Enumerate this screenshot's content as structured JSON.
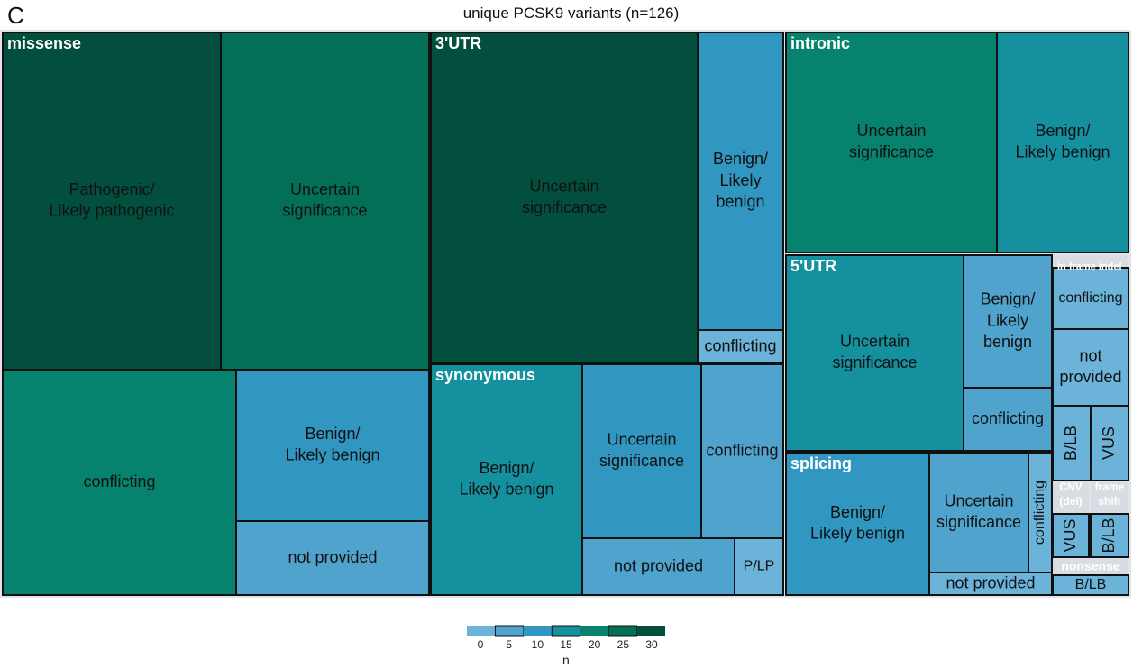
{
  "panel_letter": "C",
  "chart_data": {
    "type": "treemap",
    "title": "unique PCSK9 variants (n=126)",
    "groups": [
      {
        "name": "missense",
        "cells": [
          {
            "label": "Pathogenic/\nLikely pathogenic",
            "value": 28
          },
          {
            "label": "Uncertain\nsignificance",
            "value": 26
          },
          {
            "label": "conflicting",
            "value": 19
          },
          {
            "label": "Benign/\nLikely benign",
            "value": 11
          },
          {
            "label": "not provided",
            "value": 6
          }
        ]
      },
      {
        "name": "3'UTR",
        "cells": [
          {
            "label": "Uncertain\nsignificance",
            "value": 30
          },
          {
            "label": "Benign/\nLikely\nbenign",
            "value": 11
          },
          {
            "label": "conflicting",
            "value": 1
          }
        ]
      },
      {
        "name": "synonymous",
        "cells": [
          {
            "label": "Benign/\nLikely benign",
            "value": 13
          },
          {
            "label": "Uncertain\nsignificance",
            "value": 9
          },
          {
            "label": "conflicting",
            "value": 6
          },
          {
            "label": "not provided",
            "value": 5
          },
          {
            "label": "P/LP",
            "value": 2
          }
        ]
      },
      {
        "name": "intronic",
        "cells": [
          {
            "label": "Uncertain\nsignificance",
            "value": 20
          },
          {
            "label": "Benign/\nLikely benign",
            "value": 13
          }
        ]
      },
      {
        "name": "5'UTR",
        "cells": [
          {
            "label": "Uncertain\nsignificance",
            "value": 14
          },
          {
            "label": "Benign/\nLikely\nbenign",
            "value": 6
          },
          {
            "label": "conflicting",
            "value": 4
          }
        ]
      },
      {
        "name": "splicing",
        "cells": [
          {
            "label": "Benign/\nLikely benign",
            "value": 10
          },
          {
            "label": "Uncertain\nsignificance",
            "value": 7
          },
          {
            "label": "conflicting",
            "value": 1
          },
          {
            "label": "not provided",
            "value": 2
          }
        ]
      },
      {
        "name": "in frame indel",
        "cells": [
          {
            "label": "conflicting",
            "value": 2
          },
          {
            "label": "not\nprovided",
            "value": 2
          },
          {
            "label": "B/LB",
            "value": 1
          },
          {
            "label": "VUS",
            "value": 1
          }
        ]
      },
      {
        "name": "CNV\n(del)",
        "cells": [
          {
            "label": "VUS",
            "value": 1
          }
        ]
      },
      {
        "name": "frame\nshift",
        "cells": [
          {
            "label": "B/LB",
            "value": 1
          }
        ]
      },
      {
        "name": "nonsense",
        "cells": [
          {
            "label": "B/LB",
            "value": 1
          }
        ]
      }
    ],
    "color_scale": {
      "label": "n",
      "range": [
        0,
        30
      ],
      "ticks": [
        0,
        5,
        10,
        15,
        20,
        25,
        30
      ],
      "colors": [
        "#6bb3d8",
        "#4fa3cc",
        "#3196c0",
        "#15909e",
        "#06826e",
        "#036f57",
        "#024f3e"
      ]
    }
  }
}
